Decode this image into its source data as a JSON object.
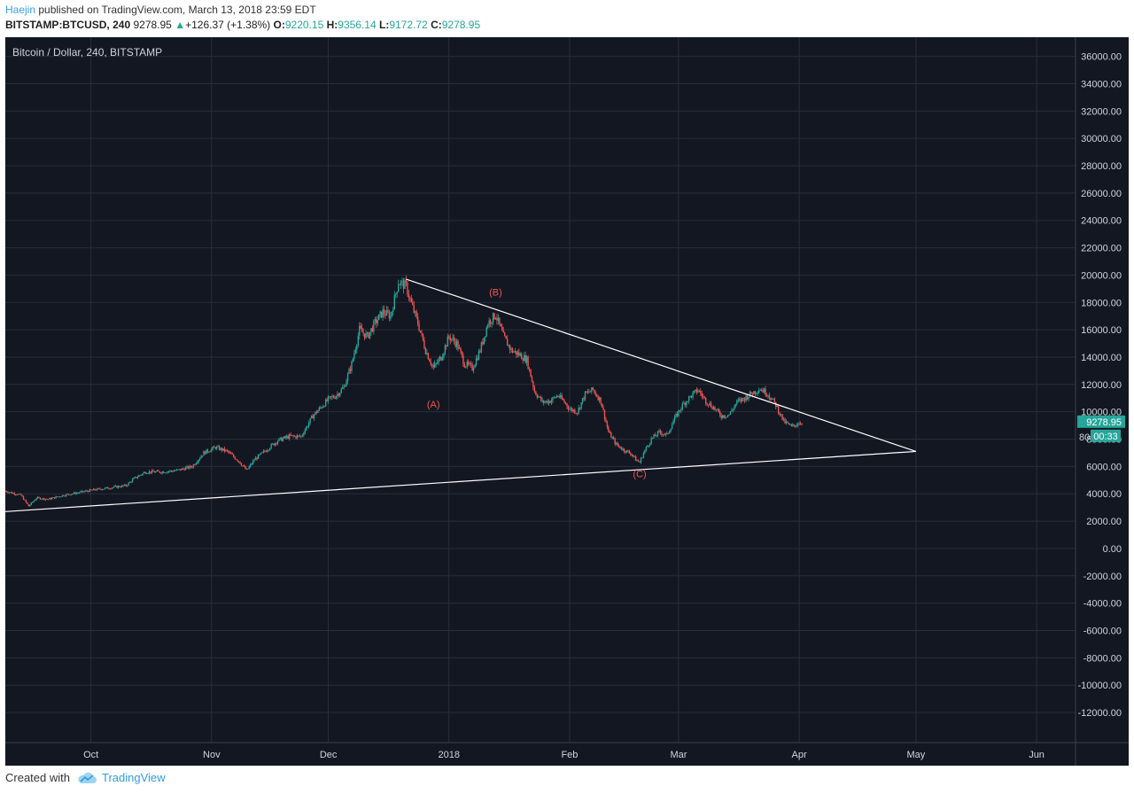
{
  "header": {
    "author": "Haejin",
    "published_text": " published on TradingView.com, March 13, 2018 23:59 EDT",
    "symbol": "BITSTAMP:BTCUSD, 240",
    "last": "9278.95",
    "change_arrow": "▲",
    "change": "+126.37 (+1.38%)",
    "o_label": "O:",
    "o_value": "9220.15",
    "h_label": "H:",
    "h_value": "9356.14",
    "l_label": "L:",
    "l_value": "9172.72",
    "c_label": "C:",
    "c_value": "9278.95"
  },
  "legend": "Bitcoin / Dollar, 240, BITSTAMP",
  "price_badge": "9278.95",
  "time_badge": "00:33",
  "price_label_partial": "80",
  "footer": {
    "created_with": "Created with",
    "brand": "TradingView"
  },
  "colors": {
    "background": "#131722",
    "grid": "#2a2e39",
    "up": "#26a69a",
    "down": "#ef5350",
    "trendline": "#ffffff",
    "annotation": "#ef5350",
    "badge": "#26a69a"
  },
  "chart_data": {
    "type": "candlestick",
    "title": "Bitcoin / Dollar, 240, BITSTAMP",
    "x_ticks": [
      "Oct",
      "Nov",
      "Dec",
      "2018",
      "Feb",
      "Mar",
      "Apr",
      "May",
      "Jun"
    ],
    "x_tick_days": [
      17,
      48,
      78,
      109,
      140,
      168,
      199,
      229,
      260
    ],
    "x_range_days": [
      -5,
      270
    ],
    "y_ticks": [
      36000,
      34000,
      32000,
      30000,
      28000,
      26000,
      24000,
      22000,
      20000,
      18000,
      16000,
      14000,
      12000,
      10000,
      8000,
      6000,
      4000,
      2000,
      0,
      -2000,
      -4000,
      -6000,
      -8000,
      -10000,
      -12000
    ],
    "y_tick_labels": [
      "36000.00",
      "34000.00",
      "32000.00",
      "30000.00",
      "28000.00",
      "26000.00",
      "24000.00",
      "22000.00",
      "20000.00",
      "18000.00",
      "16000.00",
      "14000.00",
      "12000.00",
      "10000.00",
      "8000.00",
      "6000.00",
      "4000.00",
      "2000.00",
      "0.00",
      "-2000.00",
      "-4000.00",
      "-6000.00",
      "-8000.00",
      "-10000.00",
      "-12000.00"
    ],
    "ylim": [
      -14200,
      37400
    ],
    "price_path": [
      [
        -5,
        4200
      ],
      [
        -1,
        3900
      ],
      [
        1,
        3100
      ],
      [
        3,
        3700
      ],
      [
        6,
        3600
      ],
      [
        10,
        3900
      ],
      [
        14,
        4100
      ],
      [
        18,
        4300
      ],
      [
        22,
        4450
      ],
      [
        26,
        4600
      ],
      [
        28,
        5100
      ],
      [
        31,
        5600
      ],
      [
        35,
        5600
      ],
      [
        39,
        5700
      ],
      [
        43,
        6000
      ],
      [
        46,
        7000
      ],
      [
        49,
        7400
      ],
      [
        52,
        7100
      ],
      [
        55,
        6400
      ],
      [
        57,
        5700
      ],
      [
        59,
        6500
      ],
      [
        62,
        7200
      ],
      [
        65,
        7900
      ],
      [
        68,
        8200
      ],
      [
        71,
        8200
      ],
      [
        74,
        9700
      ],
      [
        76,
        10300
      ],
      [
        78,
        10900
      ],
      [
        80,
        11200
      ],
      [
        82,
        11800
      ],
      [
        84,
        13500
      ],
      [
        86,
        16000
      ],
      [
        88,
        15500
      ],
      [
        90,
        16500
      ],
      [
        92,
        17300
      ],
      [
        94,
        17000
      ],
      [
        96,
        19500
      ],
      [
        98,
        19200
      ],
      [
        99,
        18200
      ],
      [
        101,
        16500
      ],
      [
        103,
        14500
      ],
      [
        105,
        13200
      ],
      [
        107,
        14000
      ],
      [
        109,
        15500
      ],
      [
        111,
        15000
      ],
      [
        113,
        13500
      ],
      [
        115,
        13200
      ],
      [
        117,
        14500
      ],
      [
        119,
        16500
      ],
      [
        121,
        17100
      ],
      [
        123,
        15500
      ],
      [
        125,
        14500
      ],
      [
        127,
        14200
      ],
      [
        129,
        13800
      ],
      [
        131,
        11500
      ],
      [
        133,
        10700
      ],
      [
        135,
        10800
      ],
      [
        137,
        11200
      ],
      [
        139,
        10600
      ],
      [
        140,
        10200
      ],
      [
        142,
        10000
      ],
      [
        144,
        11300
      ],
      [
        146,
        11600
      ],
      [
        148,
        10800
      ],
      [
        150,
        8500
      ],
      [
        152,
        7600
      ],
      [
        154,
        7200
      ],
      [
        156,
        6900
      ],
      [
        157,
        6500
      ],
      [
        158,
        6300
      ],
      [
        159,
        7000
      ],
      [
        161,
        8000
      ],
      [
        163,
        8500
      ],
      [
        165,
        8300
      ],
      [
        167,
        9500
      ],
      [
        169,
        10500
      ],
      [
        171,
        11100
      ],
      [
        173,
        11600
      ],
      [
        175,
        10800
      ],
      [
        177,
        10300
      ],
      [
        179,
        9700
      ],
      [
        181,
        9800
      ],
      [
        183,
        10700
      ],
      [
        185,
        11000
      ],
      [
        187,
        11400
      ],
      [
        189,
        11700
      ],
      [
        191,
        11300
      ],
      [
        193,
        10500
      ],
      [
        195,
        9300
      ],
      [
        197,
        8900
      ],
      [
        199,
        9200
      ],
      [
        200,
        9279
      ]
    ],
    "trendlines": [
      {
        "from": [
          -5,
          2700
        ],
        "to": [
          229,
          7100
        ]
      },
      {
        "from": [
          98,
          19700
        ],
        "to": [
          229,
          7100
        ]
      }
    ],
    "annotations": [
      {
        "label": "(A)",
        "x": 105,
        "y": 10300
      },
      {
        "label": "(B)",
        "x": 121,
        "y": 18500
      },
      {
        "label": "(C)",
        "x": 158,
        "y": 5200
      }
    ],
    "last_price": 9278.95
  }
}
